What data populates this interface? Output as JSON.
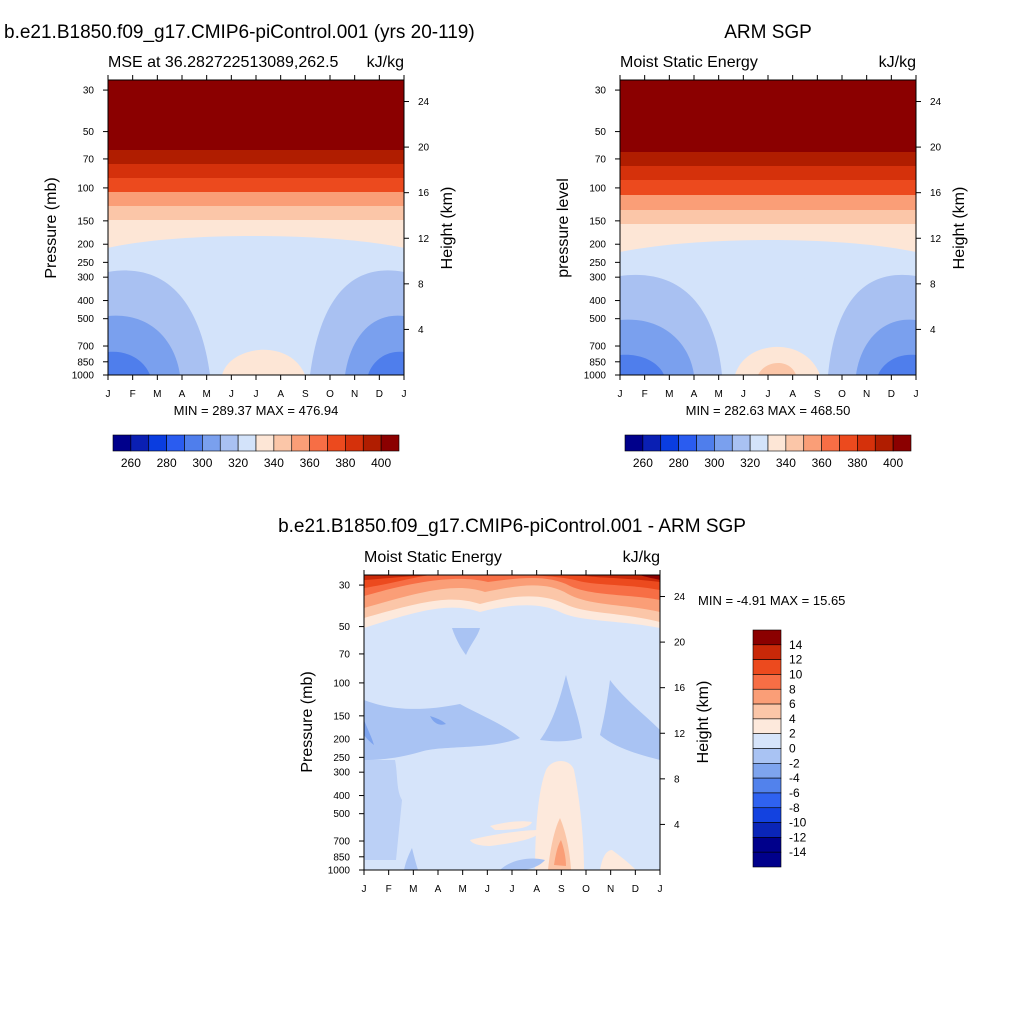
{
  "palette": {
    "blue_red": [
      "#00008b",
      "#0a1fb3",
      "#0a3de0",
      "#2a5cf0",
      "#4f7eec",
      "#7aa0ee",
      "#a9c1f2",
      "#d3e3fa",
      "#fde6d6",
      "#fbc6a8",
      "#fa9e77",
      "#f76e45",
      "#ec4a1e",
      "#d5310b",
      "#b01d00",
      "#8b0000"
    ],
    "diff": [
      "#00008b",
      "#0a25b8",
      "#1342e0",
      "#2f62f0",
      "#5282ec",
      "#7ea4ee",
      "#a9c3f3",
      "#d6e4fa",
      "#fde9dc",
      "#fbc6a8",
      "#fa9e77",
      "#f76e45",
      "#ec4a1e",
      "#c92808",
      "#8b0000"
    ]
  },
  "chart_data": [
    {
      "id": "model",
      "type": "contour",
      "title": "b.e21.B1850.f09_g17.CMIP6-piControl.001 (yrs 20-119)",
      "left_label": "MSE at 36.282722513089,262.5",
      "right_label": "kJ/kg",
      "ylabel": "Pressure (mb)",
      "ylabel_right": "Height (km)",
      "x_ticks": [
        "J",
        "F",
        "M",
        "A",
        "M",
        "J",
        "J",
        "A",
        "S",
        "O",
        "N",
        "D",
        "J"
      ],
      "y_ticks": [
        "30",
        "50",
        "70",
        "100",
        "150",
        "200",
        "250",
        "300",
        "400",
        "500",
        "700",
        "850",
        "1000"
      ],
      "height_ticks": [
        "24",
        "20",
        "16",
        "12",
        "8",
        "4"
      ],
      "stats": "MIN = 289.37 MAX = 476.94",
      "colorbar": {
        "levels": [
          260,
          280,
          300,
          320,
          340,
          360,
          380,
          400
        ],
        "labels": [
          "260",
          "280",
          "300",
          "320",
          "340",
          "360",
          "380",
          "400"
        ],
        "orientation": "horizontal"
      }
    },
    {
      "id": "obs",
      "type": "contour",
      "title": "ARM SGP",
      "left_label": "Moist Static Energy",
      "right_label": "kJ/kg",
      "ylabel": "pressure level",
      "ylabel_right": "Height (km)",
      "x_ticks": [
        "J",
        "F",
        "M",
        "A",
        "M",
        "J",
        "J",
        "A",
        "S",
        "O",
        "N",
        "D",
        "J"
      ],
      "y_ticks": [
        "30",
        "50",
        "70",
        "100",
        "150",
        "200",
        "250",
        "300",
        "400",
        "500",
        "700",
        "850",
        "1000"
      ],
      "height_ticks": [
        "24",
        "20",
        "16",
        "12",
        "8",
        "4"
      ],
      "stats": "MIN = 282.63 MAX = 468.50",
      "colorbar": {
        "levels": [
          260,
          280,
          300,
          320,
          340,
          360,
          380,
          400
        ],
        "labels": [
          "260",
          "280",
          "300",
          "320",
          "340",
          "360",
          "380",
          "400"
        ],
        "orientation": "horizontal"
      }
    },
    {
      "id": "diff",
      "type": "contour",
      "title": "b.e21.B1850.f09_g17.CMIP6-piControl.001 - ARM SGP",
      "left_label": "Moist Static Energy",
      "right_label": "kJ/kg",
      "ylabel": "Pressure (mb)",
      "ylabel_right": "Height (km)",
      "x_ticks": [
        "J",
        "F",
        "M",
        "A",
        "M",
        "J",
        "J",
        "A",
        "S",
        "O",
        "N",
        "D",
        "J"
      ],
      "y_ticks": [
        "30",
        "50",
        "70",
        "100",
        "150",
        "200",
        "250",
        "300",
        "400",
        "500",
        "700",
        "850",
        "1000"
      ],
      "height_ticks": [
        "24",
        "20",
        "16",
        "12",
        "8",
        "4"
      ],
      "stats": "MIN =  -4.91 MAX =  15.65",
      "colorbar": {
        "levels": [
          14,
          12,
          10,
          8,
          6,
          4,
          2,
          0,
          -2,
          -4,
          -6,
          -8,
          -10,
          -12,
          -14
        ],
        "labels": [
          "14",
          "12",
          "10",
          "8",
          "6",
          "4",
          "2",
          "0",
          "-2",
          "-4",
          "-6",
          "-8",
          "-10",
          "-12",
          "-14"
        ],
        "orientation": "vertical"
      }
    }
  ]
}
